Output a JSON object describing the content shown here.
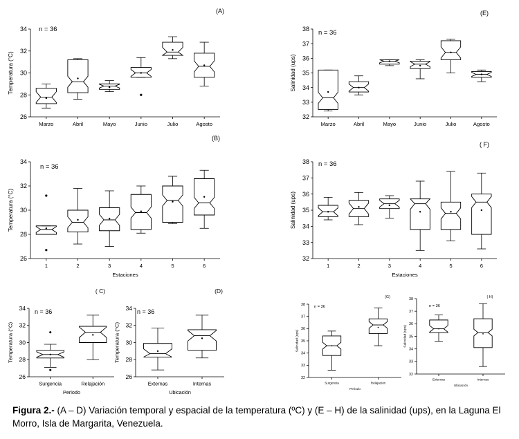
{
  "caption": {
    "label": "Figura 2.-",
    "text": " (A – D) Variación temporal y espacial de la temperatura (ºC) y (E – H) de la salinidad (ups), en la Laguna El Morro, Isla de Margarita, Venezuela."
  },
  "chart_data": [
    {
      "type": "box",
      "panel_label": "(A)",
      "n_label": "n = 36",
      "xlabel": "",
      "ylabel": "Temperatura (°C)",
      "ylim": [
        26,
        34
      ],
      "yticks": [
        26,
        28,
        30,
        32,
        34
      ],
      "categories": [
        "Marzo",
        "Abril",
        "Mayo",
        "Junio",
        "Julio",
        "Agosto"
      ],
      "boxes": [
        {
          "min": 26.8,
          "q1": 27.2,
          "median": 27.8,
          "q3": 28.6,
          "max": 29.0,
          "mean": 27.7,
          "outliers": []
        },
        {
          "min": 27.6,
          "q1": 28.2,
          "median": 29.2,
          "q3": 31.2,
          "max": 31.3,
          "mean": 29.5,
          "outliers": []
        },
        {
          "min": 28.3,
          "q1": 28.5,
          "median": 28.8,
          "q3": 29.0,
          "max": 29.3,
          "mean": 28.7,
          "outliers": []
        },
        {
          "min": 29.6,
          "q1": 29.6,
          "median": 30.0,
          "q3": 30.5,
          "max": 31.4,
          "mean": 30.0,
          "outliers": [
            28.0
          ]
        },
        {
          "min": 31.3,
          "q1": 31.6,
          "median": 31.9,
          "q3": 32.8,
          "max": 33.3,
          "mean": 32.1,
          "outliers": []
        },
        {
          "min": 28.8,
          "q1": 29.6,
          "median": 30.6,
          "q3": 31.8,
          "max": 32.8,
          "mean": 30.7,
          "outliers": []
        }
      ]
    },
    {
      "type": "box",
      "panel_label": "(B)",
      "n_label": "n = 36",
      "xlabel": "Estaciones",
      "ylabel": "Temperatura (°C)",
      "ylim": [
        26,
        34
      ],
      "yticks": [
        26,
        28,
        30,
        32,
        34
      ],
      "categories": [
        "1",
        "2",
        "3",
        "4",
        "5",
        "6"
      ],
      "boxes": [
        {
          "min": 28.0,
          "q1": 28.0,
          "median": 28.4,
          "q3": 28.7,
          "max": 28.7,
          "mean": 28.5,
          "outliers": [
            31.2,
            26.7
          ]
        },
        {
          "min": 27.2,
          "q1": 28.2,
          "median": 29.0,
          "q3": 30.0,
          "max": 31.8,
          "mean": 29.2,
          "outliers": []
        },
        {
          "min": 27.0,
          "q1": 28.3,
          "median": 29.2,
          "q3": 30.2,
          "max": 31.6,
          "mean": 29.3,
          "outliers": []
        },
        {
          "min": 28.1,
          "q1": 28.4,
          "median": 29.8,
          "q3": 31.3,
          "max": 32.0,
          "mean": 29.9,
          "outliers": []
        },
        {
          "min": 28.9,
          "q1": 29.0,
          "median": 30.8,
          "q3": 32.0,
          "max": 32.8,
          "mean": 30.7,
          "outliers": []
        },
        {
          "min": 28.5,
          "q1": 29.6,
          "median": 30.6,
          "q3": 32.6,
          "max": 33.3,
          "mean": 31.1,
          "outliers": []
        }
      ]
    },
    {
      "type": "box",
      "panel_label": "( C)",
      "n_label": "n = 36",
      "xlabel": "Periodo",
      "ylabel": "Temperatura (°C)",
      "ylim": [
        26,
        34
      ],
      "yticks": [
        26,
        28,
        30,
        32,
        34
      ],
      "categories": [
        "Surgencia",
        "Relajación"
      ],
      "boxes": [
        {
          "min": 27.1,
          "q1": 28.2,
          "median": 28.6,
          "q3": 29.1,
          "max": 29.8,
          "mean": 28.6,
          "outliers": [
            31.2,
            26.8
          ]
        },
        {
          "min": 28.0,
          "q1": 30.0,
          "median": 31.2,
          "q3": 31.9,
          "max": 33.2,
          "mean": 30.9,
          "outliers": []
        }
      ]
    },
    {
      "type": "box",
      "panel_label": "(D)",
      "n_label": "n = 36",
      "xlabel": "Ubicación",
      "ylabel": "Temperatura (°C)",
      "ylim": [
        26,
        34
      ],
      "yticks": [
        26,
        28,
        30,
        32,
        34
      ],
      "categories": [
        "Externas",
        "Internas"
      ],
      "boxes": [
        {
          "min": 26.8,
          "q1": 28.3,
          "median": 28.7,
          "q3": 29.9,
          "max": 31.7,
          "mean": 29.0,
          "outliers": []
        },
        {
          "min": 28.2,
          "q1": 29.1,
          "median": 30.8,
          "q3": 31.5,
          "max": 33.2,
          "mean": 30.5,
          "outliers": []
        }
      ]
    },
    {
      "type": "box",
      "panel_label": "(E)",
      "n_label": "n = 36",
      "xlabel": "",
      "ylabel": "Salinidad (ups)",
      "ylim": [
        32,
        38
      ],
      "yticks": [
        32,
        33,
        34,
        35,
        36,
        37,
        38
      ],
      "categories": [
        "Marzo",
        "Abril",
        "Mayo",
        "Junio",
        "Julio",
        "Agosto"
      ],
      "boxes": [
        {
          "min": 32.4,
          "q1": 32.5,
          "median": 33.3,
          "q3": 35.2,
          "max": 35.2,
          "mean": 33.7,
          "outliers": []
        },
        {
          "min": 33.5,
          "q1": 33.7,
          "median": 34.0,
          "q3": 34.4,
          "max": 34.8,
          "mean": 34.0,
          "outliers": []
        },
        {
          "min": 35.5,
          "q1": 35.6,
          "median": 35.8,
          "q3": 35.9,
          "max": 35.9,
          "mean": 35.8,
          "outliers": []
        },
        {
          "min": 34.6,
          "q1": 35.3,
          "median": 35.6,
          "q3": 35.8,
          "max": 35.9,
          "mean": 35.5,
          "outliers": []
        },
        {
          "min": 35.0,
          "q1": 35.9,
          "median": 36.4,
          "q3": 37.2,
          "max": 37.3,
          "mean": 36.4,
          "outliers": []
        },
        {
          "min": 34.4,
          "q1": 34.7,
          "median": 34.9,
          "q3": 35.1,
          "max": 35.2,
          "mean": 34.9,
          "outliers": []
        }
      ]
    },
    {
      "type": "box",
      "panel_label": "( F)",
      "n_label": "n = 36",
      "xlabel": "Estaciones",
      "ylabel": "Salinidad (ups)",
      "ylim": [
        32,
        38
      ],
      "yticks": [
        32,
        33,
        34,
        35,
        36,
        37,
        38
      ],
      "categories": [
        "1",
        "2",
        "3",
        "4",
        "5",
        "6"
      ],
      "boxes": [
        {
          "min": 34.4,
          "q1": 34.6,
          "median": 34.9,
          "q3": 35.3,
          "max": 35.8,
          "mean": 34.9,
          "outliers": []
        },
        {
          "min": 34.1,
          "q1": 34.6,
          "median": 35.1,
          "q3": 35.6,
          "max": 36.1,
          "mean": 35.2,
          "outliers": []
        },
        {
          "min": 34.5,
          "q1": 35.1,
          "median": 35.4,
          "q3": 35.7,
          "max": 35.9,
          "mean": 35.3,
          "outliers": []
        },
        {
          "min": 32.5,
          "q1": 33.8,
          "median": 35.4,
          "q3": 35.7,
          "max": 36.8,
          "mean": 34.9,
          "outliers": []
        },
        {
          "min": 33.1,
          "q1": 33.8,
          "median": 34.8,
          "q3": 35.5,
          "max": 37.4,
          "mean": 34.9,
          "outliers": []
        },
        {
          "min": 32.6,
          "q1": 33.5,
          "median": 35.5,
          "q3": 36.0,
          "max": 37.3,
          "mean": 35.0,
          "outliers": []
        }
      ]
    },
    {
      "type": "box",
      "panel_label": "(G)",
      "n_label": "n = 36",
      "xlabel": "Periodo",
      "ylabel": "Salinidad (ups)",
      "ylim": [
        32,
        38
      ],
      "yticks": [
        32,
        33,
        34,
        35,
        36,
        37,
        38
      ],
      "categories": [
        "Surgencia",
        "Relajación"
      ],
      "boxes": [
        {
          "min": 32.6,
          "q1": 33.8,
          "median": 34.6,
          "q3": 35.4,
          "max": 35.8,
          "mean": 34.6,
          "outliers": []
        },
        {
          "min": 34.6,
          "q1": 35.6,
          "median": 36.3,
          "q3": 36.8,
          "max": 37.7,
          "mean": 36.1,
          "outliers": []
        }
      ]
    },
    {
      "type": "box",
      "panel_label": "( H)",
      "n_label": "n = 36",
      "xlabel": "Ubicación",
      "ylabel": "Salinidad (ups)",
      "ylim": [
        32,
        38
      ],
      "yticks": [
        32,
        33,
        34,
        35,
        36,
        37,
        38
      ],
      "categories": [
        "Externas",
        "Internas"
      ],
      "boxes": [
        {
          "min": 34.6,
          "q1": 35.3,
          "median": 35.6,
          "q3": 36.3,
          "max": 36.7,
          "mean": 35.6,
          "outliers": []
        },
        {
          "min": 32.6,
          "q1": 34.1,
          "median": 35.3,
          "q3": 36.4,
          "max": 37.6,
          "mean": 35.2,
          "outliers": []
        }
      ]
    }
  ]
}
